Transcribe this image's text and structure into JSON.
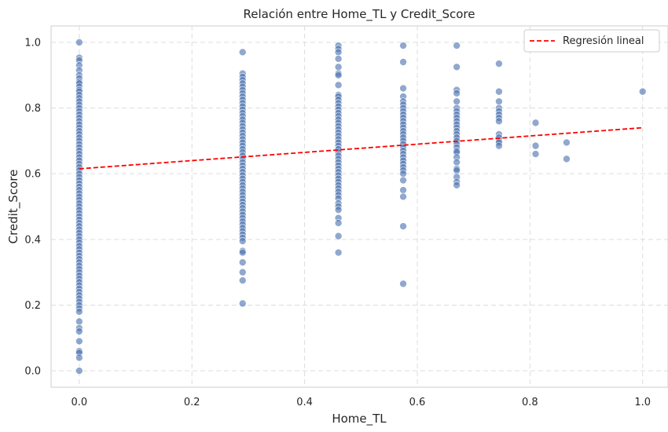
{
  "chart_data": {
    "type": "scatter",
    "title": "Relación entre Home_TL y Credit_Score",
    "xlabel": "Home_TL",
    "ylabel": "Credit_Score",
    "xlim": [
      -0.05,
      1.045
    ],
    "ylim": [
      -0.05,
      1.05
    ],
    "xticks": [
      "0.0",
      "0.2",
      "0.4",
      "0.6",
      "0.8",
      "1.0"
    ],
    "yticks": [
      "0.0",
      "0.2",
      "0.4",
      "0.6",
      "0.8",
      "1.0"
    ],
    "grid": true,
    "legend": {
      "placement": "top-right",
      "entries": [
        "Regresión lineal"
      ]
    },
    "colors": {
      "points": "#4c72b0",
      "regression": "#ff0000"
    },
    "series": [
      {
        "x": 0.0,
        "y": [
          1.0,
          0.953,
          0.945,
          0.93,
          0.915,
          0.9,
          0.89,
          0.88,
          0.875,
          0.865,
          0.855,
          0.85,
          0.84,
          0.83,
          0.82,
          0.81,
          0.8,
          0.79,
          0.78,
          0.77,
          0.76,
          0.75,
          0.74,
          0.73,
          0.72,
          0.71,
          0.7,
          0.69,
          0.68,
          0.67,
          0.66,
          0.65,
          0.64,
          0.63,
          0.62,
          0.61,
          0.6,
          0.59,
          0.58,
          0.57,
          0.56,
          0.55,
          0.54,
          0.53,
          0.52,
          0.51,
          0.5,
          0.49,
          0.48,
          0.47,
          0.46,
          0.45,
          0.44,
          0.43,
          0.42,
          0.41,
          0.4,
          0.39,
          0.38,
          0.37,
          0.36,
          0.35,
          0.34,
          0.33,
          0.32,
          0.31,
          0.3,
          0.29,
          0.28,
          0.27,
          0.26,
          0.25,
          0.24,
          0.23,
          0.22,
          0.21,
          0.2,
          0.19,
          0.18,
          0.15,
          0.13,
          0.12,
          0.09,
          0.06,
          0.055,
          0.04,
          0.0
        ]
      },
      {
        "x": 0.29,
        "y": [
          0.97,
          0.905,
          0.895,
          0.885,
          0.875,
          0.865,
          0.855,
          0.845,
          0.835,
          0.825,
          0.815,
          0.805,
          0.795,
          0.785,
          0.775,
          0.765,
          0.755,
          0.745,
          0.735,
          0.725,
          0.715,
          0.705,
          0.695,
          0.685,
          0.675,
          0.665,
          0.655,
          0.645,
          0.635,
          0.625,
          0.615,
          0.605,
          0.595,
          0.585,
          0.575,
          0.565,
          0.555,
          0.545,
          0.535,
          0.525,
          0.515,
          0.505,
          0.495,
          0.485,
          0.475,
          0.465,
          0.455,
          0.445,
          0.435,
          0.425,
          0.415,
          0.405,
          0.395,
          0.365,
          0.36,
          0.33,
          0.3,
          0.275,
          0.205
        ]
      },
      {
        "x": 0.46,
        "y": [
          0.99,
          0.98,
          0.97,
          0.95,
          0.925,
          0.905,
          0.9,
          0.87,
          0.84,
          0.835,
          0.825,
          0.815,
          0.805,
          0.795,
          0.785,
          0.775,
          0.765,
          0.755,
          0.745,
          0.735,
          0.725,
          0.715,
          0.705,
          0.695,
          0.685,
          0.675,
          0.665,
          0.655,
          0.645,
          0.635,
          0.625,
          0.615,
          0.605,
          0.595,
          0.585,
          0.575,
          0.565,
          0.555,
          0.545,
          0.535,
          0.525,
          0.51,
          0.5,
          0.49,
          0.465,
          0.45,
          0.41,
          0.36
        ]
      },
      {
        "x": 0.575,
        "y": [
          0.99,
          0.94,
          0.86,
          0.835,
          0.82,
          0.81,
          0.8,
          0.79,
          0.78,
          0.77,
          0.76,
          0.75,
          0.74,
          0.73,
          0.72,
          0.71,
          0.7,
          0.69,
          0.68,
          0.67,
          0.66,
          0.65,
          0.64,
          0.63,
          0.62,
          0.61,
          0.6,
          0.58,
          0.55,
          0.53,
          0.44,
          0.265
        ]
      },
      {
        "x": 0.67,
        "y": [
          0.99,
          0.925,
          0.855,
          0.845,
          0.82,
          0.8,
          0.79,
          0.78,
          0.77,
          0.76,
          0.75,
          0.74,
          0.73,
          0.72,
          0.71,
          0.7,
          0.69,
          0.68,
          0.67,
          0.665,
          0.65,
          0.635,
          0.615,
          0.61,
          0.59,
          0.575,
          0.565
        ]
      },
      {
        "x": 0.745,
        "y": [
          0.935,
          0.85,
          0.82,
          0.8,
          0.79,
          0.78,
          0.77,
          0.76,
          0.72,
          0.71,
          0.7,
          0.695,
          0.685
        ]
      },
      {
        "x": 0.81,
        "y": [
          0.755,
          0.685,
          0.66
        ]
      },
      {
        "x": 0.865,
        "y": [
          0.695,
          0.645
        ]
      },
      {
        "x": 1.0,
        "y": [
          0.85
        ]
      }
    ],
    "regression": {
      "x": [
        0.0,
        1.0
      ],
      "y": [
        0.615,
        0.74
      ]
    }
  }
}
